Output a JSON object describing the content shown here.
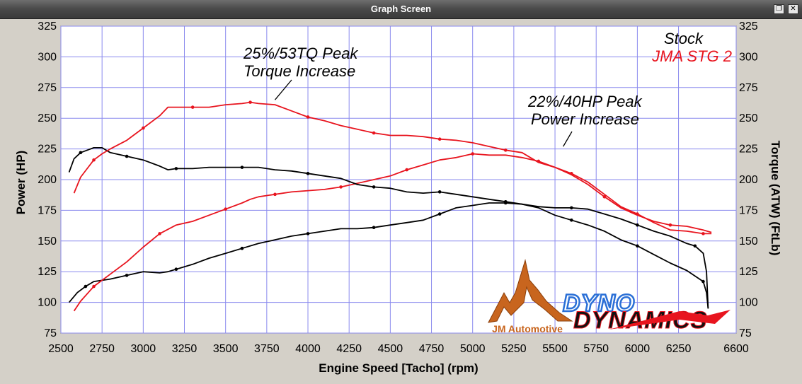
{
  "window": {
    "title": "Graph Screen",
    "restore_icon": "restore-icon",
    "close_icon": "close-icon"
  },
  "colors": {
    "stock": "#000000",
    "stage2": "#e8141e",
    "grid": "#8a8aee",
    "plot_bg": "#ffffff",
    "logo_orange": "#c8651e",
    "logo_blue": "#2a6fd6",
    "logo_red": "#e8141e"
  },
  "logos": {
    "jm_caption": "JM Automotive",
    "dyno_top": "DYNO",
    "dyno_bottom": "DYNAMICS"
  },
  "chart_data": {
    "type": "line",
    "xlabel": "Engine Speed [Tacho] (rpm)",
    "ylabel": "Power (HP)",
    "ylabel_right": "Torque (ATW) (FtLb)",
    "xlim": [
      2500,
      6600
    ],
    "ylim": [
      75,
      325
    ],
    "ylim_right": [
      75,
      325
    ],
    "x_ticks": [
      "2500",
      "2750",
      "3000",
      "3250",
      "3500",
      "3750",
      "4000",
      "4250",
      "4500",
      "4750",
      "5000",
      "5250",
      "5500",
      "5750",
      "6000",
      "6250",
      "6600"
    ],
    "y_ticks": [
      "325",
      "300",
      "275",
      "250",
      "225",
      "200",
      "175",
      "150",
      "125",
      "100",
      "75"
    ],
    "y_ticks_right": [
      "325",
      "300",
      "275",
      "250",
      "225",
      "200",
      "175",
      "150",
      "125",
      "100",
      "75"
    ],
    "grid": true,
    "legend": {
      "position": "top-right",
      "entries": [
        "Stock",
        "JMA STG 2"
      ]
    },
    "annotations": [
      {
        "lines": [
          "25%/53TQ Peak",
          "Torque Increase"
        ],
        "arrow_to": [
          3800,
          265
        ]
      },
      {
        "lines": [
          "22%/40HP Peak",
          "Power Increase"
        ],
        "arrow_to": [
          5550,
          227
        ]
      }
    ],
    "series": [
      {
        "name": "Stock",
        "kind": "power",
        "x": [
          2550,
          2600,
          2650,
          2700,
          2750,
          2800,
          2900,
          3000,
          3100,
          3150,
          3200,
          3300,
          3400,
          3500,
          3600,
          3700,
          3800,
          3900,
          4000,
          4100,
          4200,
          4300,
          4400,
          4500,
          4600,
          4700,
          4800,
          4900,
          5000,
          5100,
          5200,
          5300,
          5400,
          5500,
          5600,
          5700,
          5800,
          5900,
          6000,
          6100,
          6200,
          6300,
          6350,
          6400,
          6420,
          6430
        ],
        "values": [
          100,
          108,
          113,
          117,
          118,
          119,
          122,
          125,
          124,
          125,
          127,
          131,
          136,
          140,
          144,
          148,
          151,
          154,
          156,
          158,
          160,
          160,
          161,
          163,
          165,
          167,
          172,
          177,
          179,
          181,
          181,
          180,
          178,
          177,
          177,
          176,
          172,
          168,
          163,
          158,
          154,
          148,
          146,
          140,
          125,
          95
        ]
      },
      {
        "name": "JMA STG 2",
        "kind": "power",
        "x": [
          2580,
          2620,
          2700,
          2800,
          2900,
          3000,
          3100,
          3200,
          3300,
          3400,
          3500,
          3600,
          3650,
          3700,
          3800,
          3900,
          4000,
          4100,
          4200,
          4300,
          4400,
          4500,
          4600,
          4700,
          4800,
          4900,
          5000,
          5100,
          5200,
          5300,
          5400,
          5500,
          5600,
          5700,
          5800,
          5900,
          6000,
          6100,
          6200,
          6300,
          6400,
          6450
        ],
        "values": [
          93,
          101,
          113,
          123,
          133,
          145,
          156,
          163,
          166,
          171,
          176,
          181,
          184,
          186,
          188,
          190,
          191,
          192,
          194,
          197,
          200,
          203,
          208,
          212,
          216,
          218,
          221,
          220,
          220,
          218,
          215,
          210,
          204,
          196,
          186,
          177,
          171,
          166,
          163,
          162,
          159,
          157
        ]
      },
      {
        "name": "Stock",
        "kind": "torque",
        "x": [
          2550,
          2580,
          2620,
          2700,
          2750,
          2800,
          2900,
          3000,
          3100,
          3150,
          3200,
          3300,
          3400,
          3500,
          3600,
          3700,
          3800,
          3900,
          4000,
          4100,
          4200,
          4300,
          4400,
          4500,
          4600,
          4700,
          4800,
          4900,
          5000,
          5100,
          5200,
          5300,
          5400,
          5500,
          5600,
          5700,
          5800,
          5900,
          6000,
          6100,
          6200,
          6300,
          6400,
          6420,
          6430
        ],
        "values": [
          206,
          217,
          222,
          226,
          226,
          222,
          219,
          216,
          211,
          208,
          209,
          209,
          210,
          210,
          210,
          210,
          208,
          207,
          205,
          203,
          201,
          196,
          194,
          193,
          190,
          189,
          190,
          188,
          186,
          184,
          182,
          180,
          177,
          171,
          167,
          163,
          158,
          151,
          146,
          139,
          132,
          126,
          117,
          108,
          95
        ]
      },
      {
        "name": "JMA STG 2",
        "kind": "torque",
        "x": [
          2580,
          2620,
          2700,
          2750,
          2800,
          2900,
          3000,
          3100,
          3150,
          3200,
          3300,
          3400,
          3500,
          3600,
          3650,
          3700,
          3800,
          3900,
          4000,
          4100,
          4200,
          4300,
          4400,
          4500,
          4600,
          4700,
          4800,
          4900,
          5000,
          5100,
          5200,
          5300,
          5400,
          5500,
          5600,
          5700,
          5800,
          5900,
          6000,
          6100,
          6200,
          6300,
          6400,
          6450
        ],
        "values": [
          189,
          202,
          216,
          221,
          225,
          232,
          242,
          252,
          259,
          259,
          259,
          259,
          261,
          262,
          263,
          262,
          261,
          256,
          251,
          248,
          244,
          241,
          238,
          236,
          236,
          235,
          233,
          232,
          230,
          227,
          224,
          222,
          214,
          210,
          205,
          198,
          188,
          178,
          172,
          165,
          159,
          158,
          156,
          156
        ]
      }
    ]
  }
}
